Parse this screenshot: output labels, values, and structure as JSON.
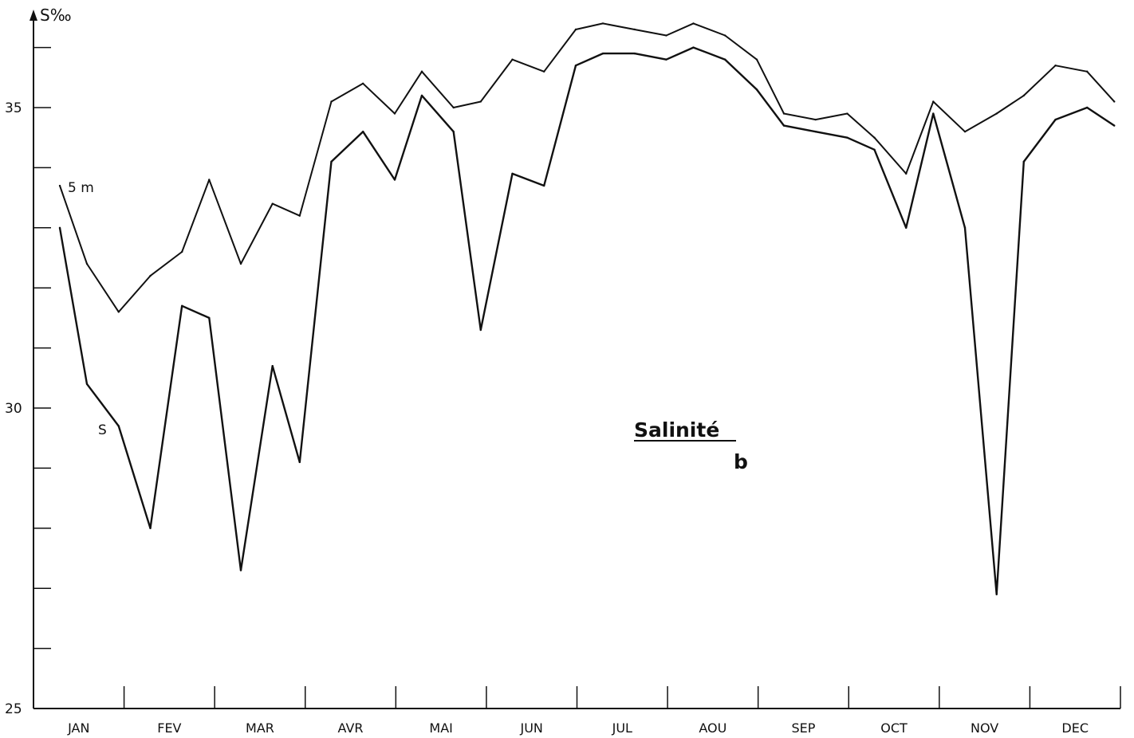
{
  "chart_data": {
    "type": "line",
    "y_axis_label": "S‰",
    "ylim": [
      25,
      36.5
    ],
    "y_ticks": [
      26,
      27,
      28,
      29,
      30,
      31,
      32,
      33,
      34,
      35,
      36
    ],
    "y_tick_labels": [
      {
        "value": 25,
        "label": "25"
      },
      {
        "value": 30,
        "label": "30"
      },
      {
        "value": 35,
        "label": "35"
      }
    ],
    "x_range": [
      0,
      11.6
    ],
    "months": [
      "JAN",
      "FEV",
      "MAR",
      "AVR",
      "MAI",
      "JUN",
      "JUL",
      "AOU",
      "SEP",
      "OCT",
      "NOV",
      "DEC"
    ],
    "series": [
      {
        "name": "5 m",
        "x": [
          0,
          0.3,
          0.65,
          1.0,
          1.35,
          1.65,
          2.0,
          2.35,
          2.65,
          3.0,
          3.35,
          3.7,
          4.0,
          4.35,
          4.65,
          5.0,
          5.35,
          5.7,
          6.0,
          6.35,
          6.7,
          7.0,
          7.35,
          7.7,
          8.0,
          8.35,
          8.7,
          9.0,
          9.35,
          9.65,
          10.0,
          10.35,
          10.65,
          11.0,
          11.35,
          11.65
        ],
        "values": [
          33.7,
          32.4,
          31.6,
          32.2,
          32.6,
          33.8,
          32.4,
          33.4,
          33.2,
          35.1,
          35.4,
          34.9,
          35.6,
          35.0,
          35.1,
          35.8,
          35.6,
          36.3,
          36.4,
          36.3,
          36.2,
          36.4,
          36.2,
          35.8,
          34.9,
          34.8,
          34.9,
          34.5,
          33.9,
          35.1,
          34.6,
          34.9,
          35.2,
          35.7,
          35.6,
          35.1
        ]
      },
      {
        "name": "S",
        "x": [
          0,
          0.3,
          0.65,
          1.0,
          1.35,
          1.65,
          2.0,
          2.35,
          2.65,
          3.0,
          3.35,
          3.7,
          4.0,
          4.35,
          4.65,
          5.0,
          5.35,
          5.7,
          6.0,
          6.35,
          6.7,
          7.0,
          7.35,
          7.7,
          8.0,
          8.35,
          8.7,
          9.0,
          9.35,
          9.65,
          10.0,
          10.35,
          10.65,
          11.0,
          11.35,
          11.65
        ],
        "values": [
          33.0,
          30.4,
          29.7,
          28.0,
          31.7,
          31.5,
          27.3,
          30.7,
          29.1,
          34.1,
          34.6,
          33.8,
          35.2,
          34.6,
          31.3,
          33.9,
          33.7,
          35.7,
          35.9,
          35.9,
          35.8,
          36.0,
          35.8,
          35.3,
          34.7,
          34.6,
          34.5,
          34.3,
          33.0,
          34.9,
          33.0,
          26.9,
          34.1,
          34.8,
          35.0,
          34.7
        ]
      }
    ],
    "series_labels": [
      "5 m",
      "S"
    ],
    "annotation": "Salinité",
    "panel_label": "b",
    "grid": false,
    "legend": "none"
  }
}
